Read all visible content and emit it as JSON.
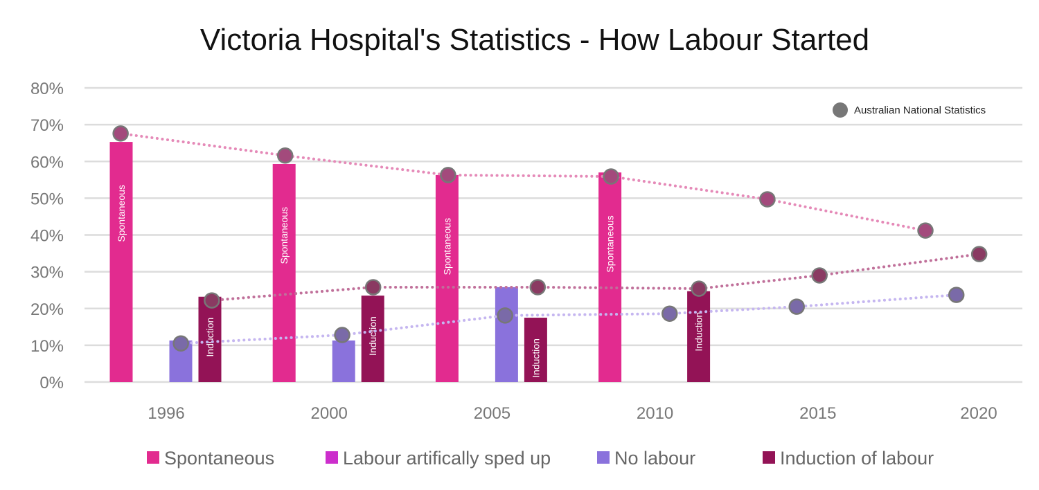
{
  "chart_data": {
    "type": "bar",
    "title": "Victoria Hospital's Statistics - How Labour Started",
    "xlabel": "",
    "ylabel": "",
    "categories": [
      "1996",
      "2000",
      "2005",
      "2010",
      "2015",
      "2020"
    ],
    "ylim": [
      0,
      80
    ],
    "yticks": [
      "0%",
      "10%",
      "20%",
      "30%",
      "40%",
      "50%",
      "60%",
      "70%",
      "80%"
    ],
    "grid": true,
    "legend_position": "bottom",
    "series": [
      {
        "name": "Spontaneous",
        "color": "#e22b8f",
        "values": [
          65.3,
          59.3,
          56.3,
          57.0,
          null,
          null
        ],
        "bar_label": "Spontaneous"
      },
      {
        "name": "Labour artifically sped up",
        "color": "#cc2ecc",
        "values": [
          null,
          null,
          null,
          null,
          null,
          null
        ],
        "bar_label": ""
      },
      {
        "name": "No labour",
        "color": "#8a72dc",
        "values": [
          11.3,
          11.3,
          25.8,
          null,
          null,
          null
        ],
        "bar_label": ""
      },
      {
        "name": "Induction of labour",
        "color": "#931356",
        "values": [
          23.2,
          23.5,
          17.5,
          24.7,
          null,
          null
        ],
        "bar_label": "Induction"
      }
    ],
    "overlay": {
      "type": "scatter-dotted-line",
      "name": "Australian National Statistics",
      "legend_position": "top-right",
      "marker_color": "#777777",
      "x_unit": "category position (0 = 1996, 5 = 2020)",
      "series": [
        {
          "related_to": "Spontaneous",
          "line_color": "#e58ab8",
          "fill": "#a34a7c",
          "x": [
            -0.28,
            0.73,
            1.73,
            2.73,
            3.69,
            4.66
          ],
          "y": [
            67.6,
            61.6,
            56.3,
            55.9,
            49.7,
            41.2
          ]
        },
        {
          "related_to": "Induction of labour",
          "line_color": "#c0709a",
          "fill": "#8a3a62",
          "x": [
            0.28,
            1.27,
            2.28,
            3.27,
            4.01,
            4.99
          ],
          "y": [
            22.2,
            25.8,
            25.8,
            25.4,
            29.0,
            34.8
          ]
        },
        {
          "related_to": "No labour",
          "line_color": "#c5b6f0",
          "fill": "#7a6aa8",
          "x": [
            0.09,
            1.08,
            2.08,
            3.09,
            3.87,
            4.85
          ],
          "y": [
            10.5,
            12.8,
            18.1,
            18.6,
            20.5,
            23.7
          ]
        }
      ]
    }
  }
}
